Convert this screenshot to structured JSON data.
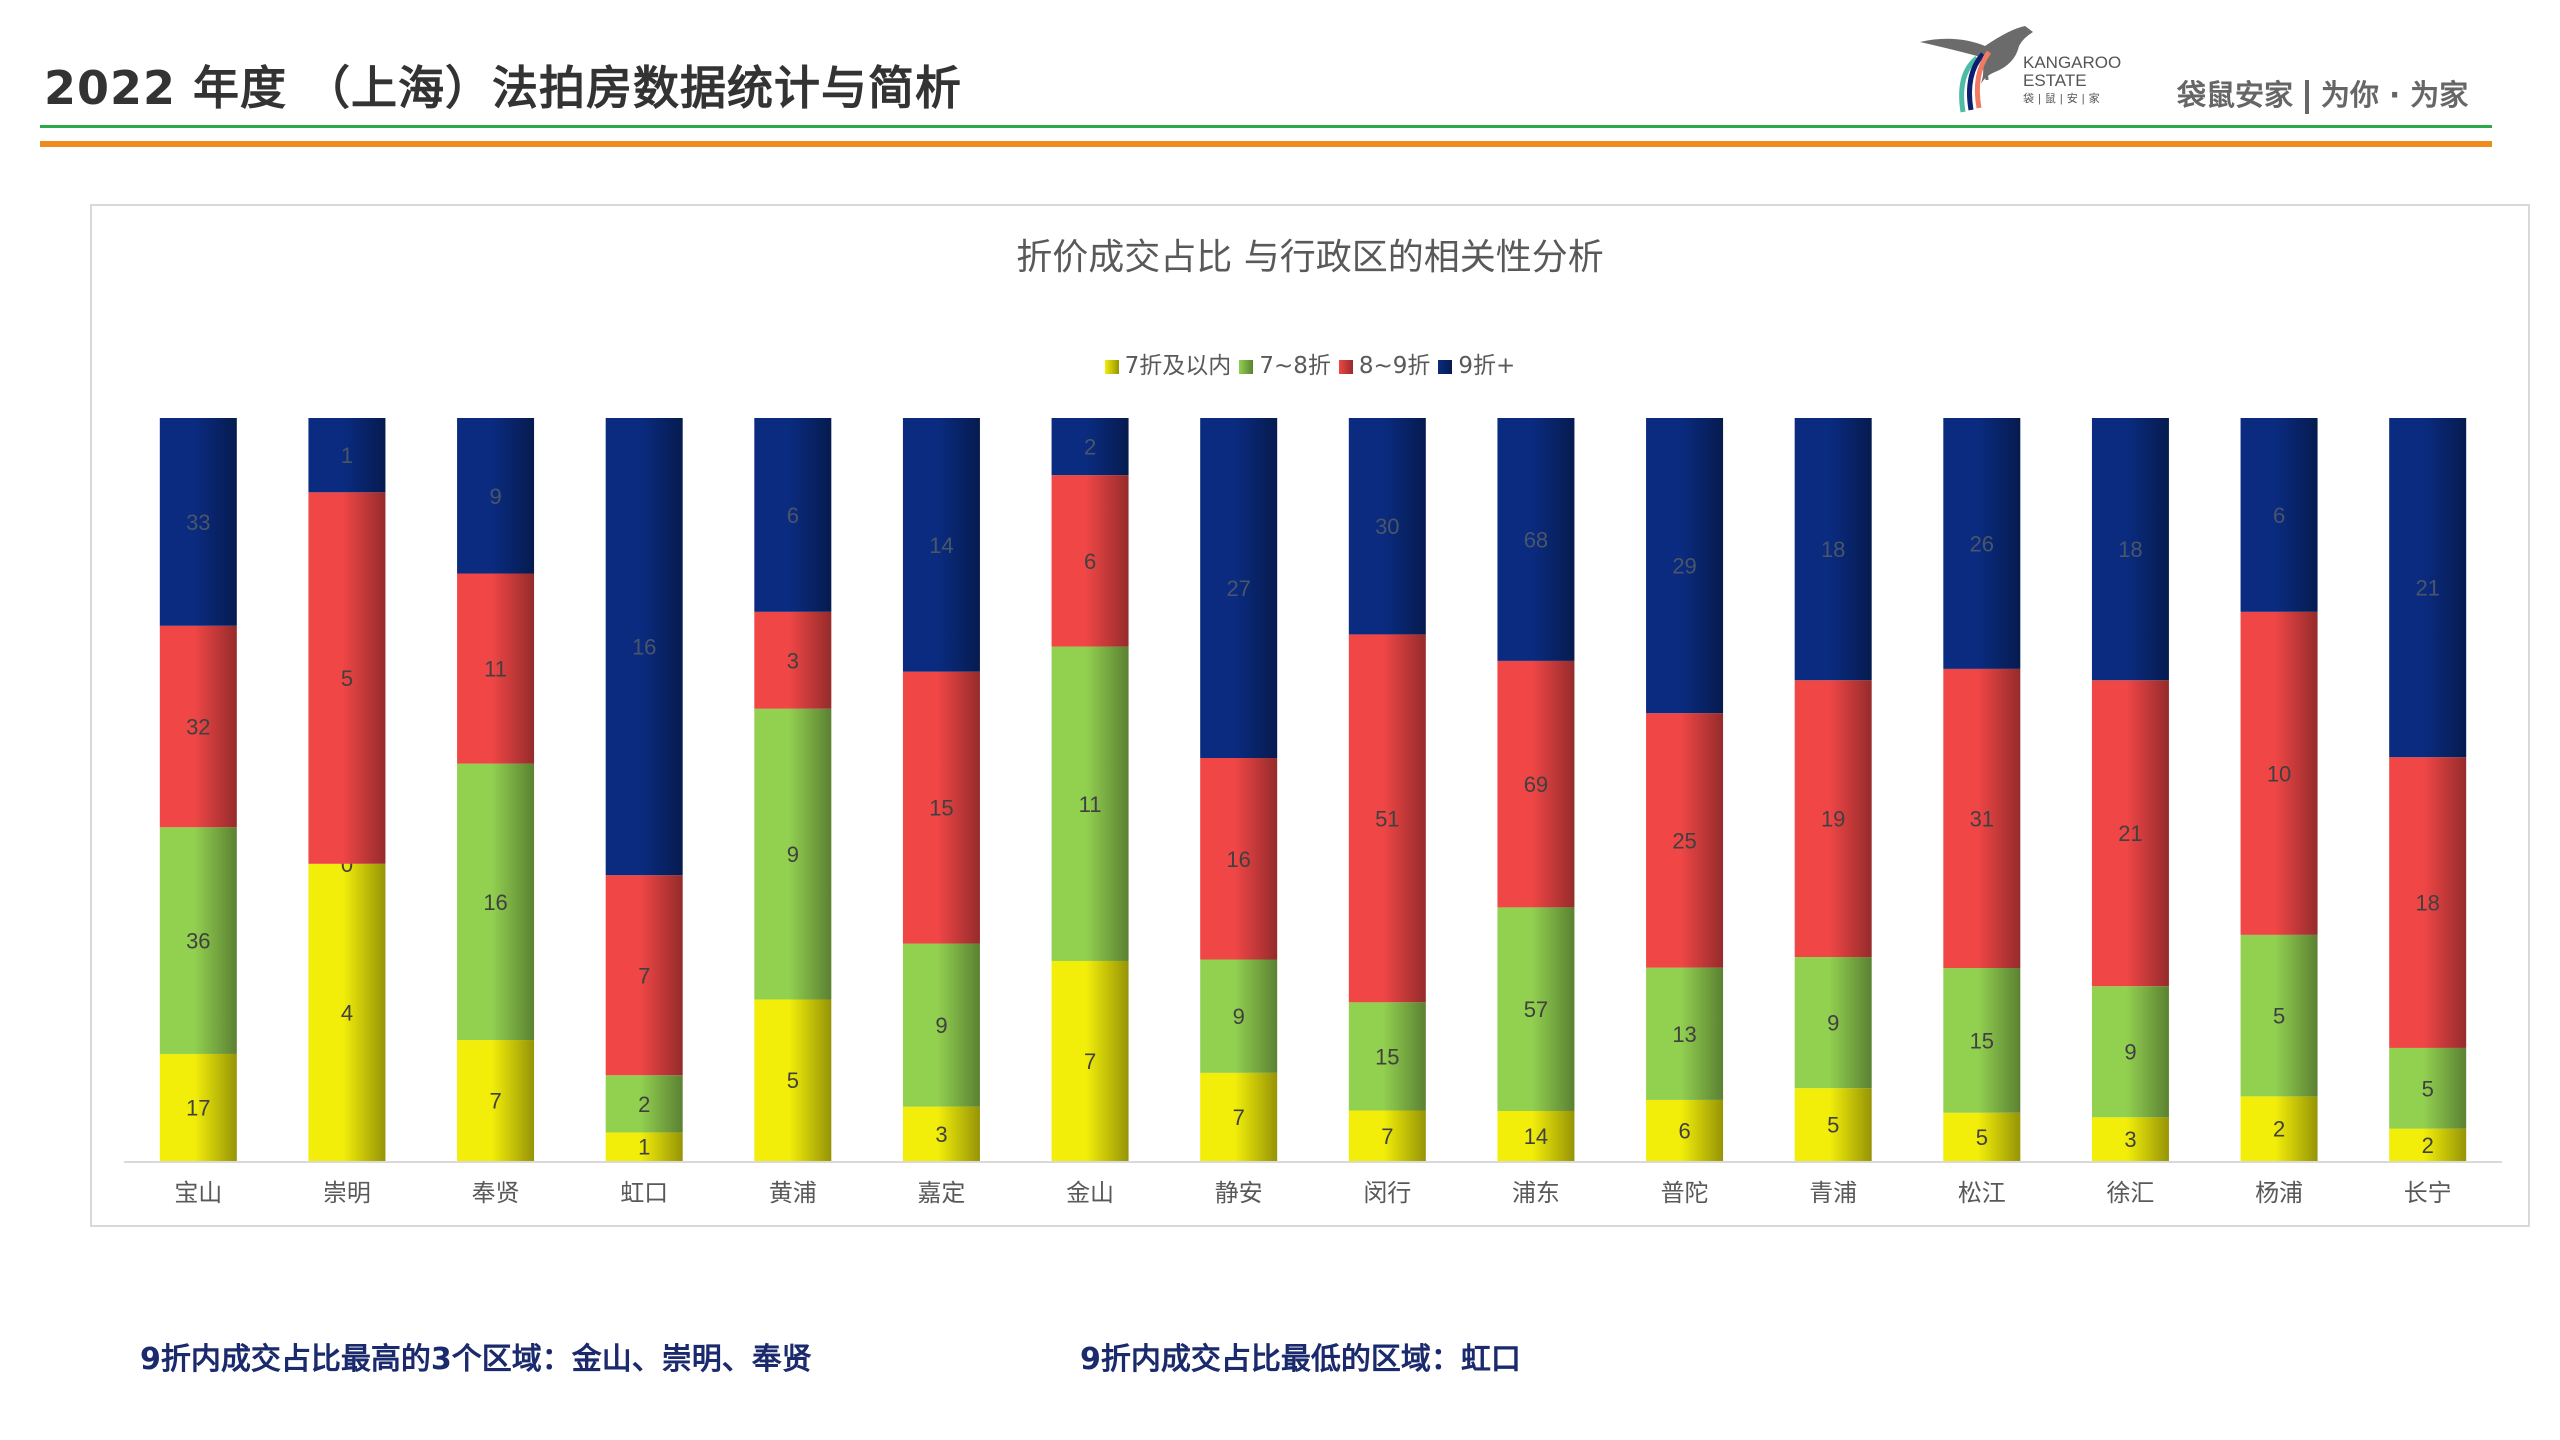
{
  "header": {
    "title": "2022 年度 （上海）法拍房数据统计与简析",
    "logo_text_line1": "KANGAROO",
    "logo_text_line2": "ESTATE",
    "logo_text_cn": "袋|鼠|安|家",
    "slogan_brand": "袋鼠安家",
    "slogan_tagline": "为你 · 为家"
  },
  "colors": {
    "green_rule": "#2aa84a",
    "orange_rule": "#f08c1e",
    "footer_text": "#1a2a6c"
  },
  "chart_data": {
    "type": "bar",
    "stacked": "100%",
    "title": "折价成交占比 与行政区的相关性分析",
    "legend_position": "top",
    "grid": false,
    "categories": [
      "宝山",
      "崇明",
      "奉贤",
      "虹口",
      "黄浦",
      "嘉定",
      "金山",
      "静安",
      "闵行",
      "浦东",
      "普陀",
      "青浦",
      "松江",
      "徐汇",
      "杨浦",
      "长宁"
    ],
    "series": [
      {
        "name": "7折及以内",
        "color": "#f2ee0a",
        "values": [
          17,
          4,
          7,
          1,
          5,
          3,
          7,
          7,
          7,
          14,
          6,
          5,
          5,
          3,
          2,
          2
        ]
      },
      {
        "name": "7~8折",
        "color": "#92d050",
        "values": [
          36,
          0,
          16,
          2,
          9,
          9,
          11,
          9,
          15,
          57,
          13,
          9,
          15,
          9,
          5,
          5
        ]
      },
      {
        "name": "8~9折",
        "color": "#f04646",
        "values": [
          32,
          5,
          11,
          7,
          3,
          15,
          6,
          16,
          51,
          69,
          25,
          19,
          31,
          21,
          10,
          18
        ]
      },
      {
        "name": "9折+",
        "color": "#0a2b80",
        "values": [
          33,
          1,
          9,
          16,
          6,
          14,
          2,
          27,
          30,
          68,
          29,
          18,
          26,
          18,
          6,
          21
        ]
      }
    ]
  },
  "footer": {
    "note_left": "9折内成交占比最高的3个区域：金山、崇明、奉贤",
    "note_right": "9折内成交占比最低的区域：虹口"
  }
}
